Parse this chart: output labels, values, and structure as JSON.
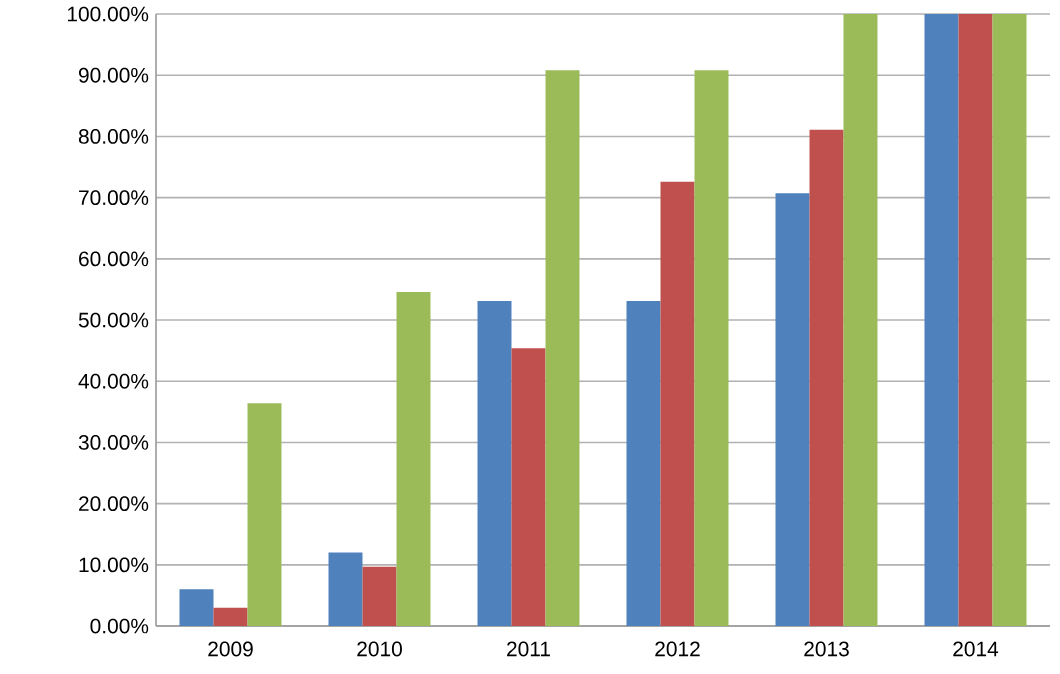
{
  "chart_data": {
    "type": "bar",
    "categories": [
      "2009",
      "2010",
      "2011",
      "2012",
      "2013",
      "2014"
    ],
    "series": [
      {
        "color": "#4f81bd",
        "values": [
          6.0,
          12.0,
          53.1,
          53.1,
          70.7,
          100
        ]
      },
      {
        "color": "#c0504d",
        "values": [
          3.0,
          9.7,
          45.4,
          72.6,
          81.1,
          100
        ]
      },
      {
        "color": "#9bbb59",
        "values": [
          36.4,
          54.6,
          90.8,
          90.8,
          100,
          100
        ]
      }
    ],
    "ylim": [
      0,
      100
    ],
    "yticks": [
      {
        "value": 0,
        "label": "0.00%"
      },
      {
        "value": 10,
        "label": "10.00%"
      },
      {
        "value": 20,
        "label": "20.00%"
      },
      {
        "value": 30,
        "label": "30.00%"
      },
      {
        "value": 40,
        "label": "40.00%"
      },
      {
        "value": 50,
        "label": "50.00%"
      },
      {
        "value": 60,
        "label": "60.00%"
      },
      {
        "value": 70,
        "label": "70.00%"
      },
      {
        "value": 80,
        "label": "80.00%"
      },
      {
        "value": 90,
        "label": "90.00%"
      },
      {
        "value": 100,
        "label": "100.00%"
      }
    ],
    "grid": "y"
  }
}
